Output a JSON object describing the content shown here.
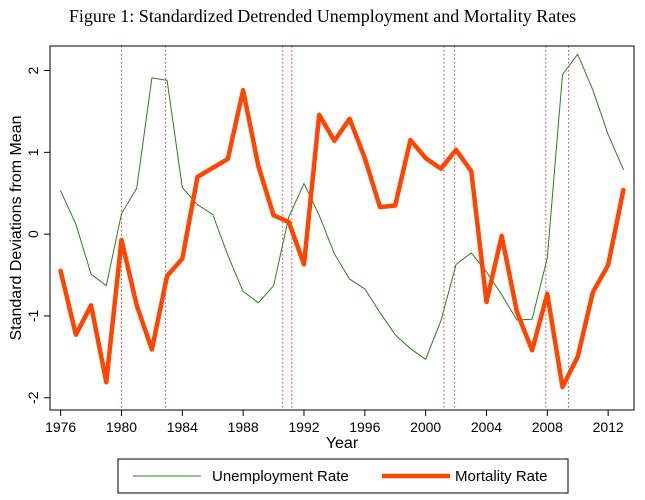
{
  "chart_data": {
    "type": "line",
    "title": "Figure 1: Standardized Detrended Unemployment and Mortality Rates",
    "xlabel": "Year",
    "ylabel": "Standard Deviations from Mean",
    "xlim": [
      1975.3,
      2013.7
    ],
    "ylim": [
      -2.15,
      2.3
    ],
    "x_ticks": [
      1976,
      1980,
      1984,
      1988,
      1992,
      1996,
      2000,
      2004,
      2008,
      2012
    ],
    "y_ticks": [
      -2,
      -1,
      0,
      1,
      2
    ],
    "grid": false,
    "legend_position": "bottom",
    "recession_lines": [
      1980.0,
      1982.9,
      1990.6,
      1991.2,
      2001.2,
      2001.9,
      2007.9,
      2009.4
    ],
    "years": [
      1976,
      1977,
      1978,
      1979,
      1980,
      1981,
      1982,
      1983,
      1984,
      1985,
      1986,
      1987,
      1988,
      1989,
      1990,
      1991,
      1992,
      1993,
      1994,
      1995,
      1996,
      1997,
      1998,
      1999,
      2000,
      2001,
      2002,
      2003,
      2004,
      2005,
      2006,
      2007,
      2008,
      2009,
      2010,
      2011,
      2012,
      2013
    ],
    "series": [
      {
        "name": "Unemployment Rate",
        "color": "#2e7d1e",
        "values": [
          0.53,
          0.12,
          -0.49,
          -0.63,
          0.25,
          0.56,
          1.91,
          1.88,
          0.57,
          0.36,
          0.24,
          -0.26,
          -0.7,
          -0.84,
          -0.63,
          0.21,
          0.62,
          0.23,
          -0.24,
          -0.55,
          -0.67,
          -0.96,
          -1.23,
          -1.4,
          -1.53,
          -1.06,
          -0.37,
          -0.23,
          -0.46,
          -0.74,
          -1.05,
          -1.04,
          -0.29,
          1.95,
          2.2,
          1.76,
          1.22,
          0.79
        ]
      },
      {
        "name": "Mortality Rate",
        "color": "#ff4500",
        "values": [
          -0.45,
          -1.23,
          -0.87,
          -1.81,
          -0.07,
          -0.87,
          -1.41,
          -0.51,
          -0.3,
          0.7,
          0.81,
          0.92,
          1.76,
          0.83,
          0.23,
          0.15,
          -0.37,
          1.46,
          1.14,
          1.41,
          0.93,
          0.33,
          0.35,
          1.15,
          0.93,
          0.8,
          1.03,
          0.77,
          -0.83,
          -0.02,
          -0.95,
          -1.42,
          -0.73,
          -1.87,
          -1.5,
          -0.71,
          -0.38,
          0.54
        ]
      }
    ]
  }
}
